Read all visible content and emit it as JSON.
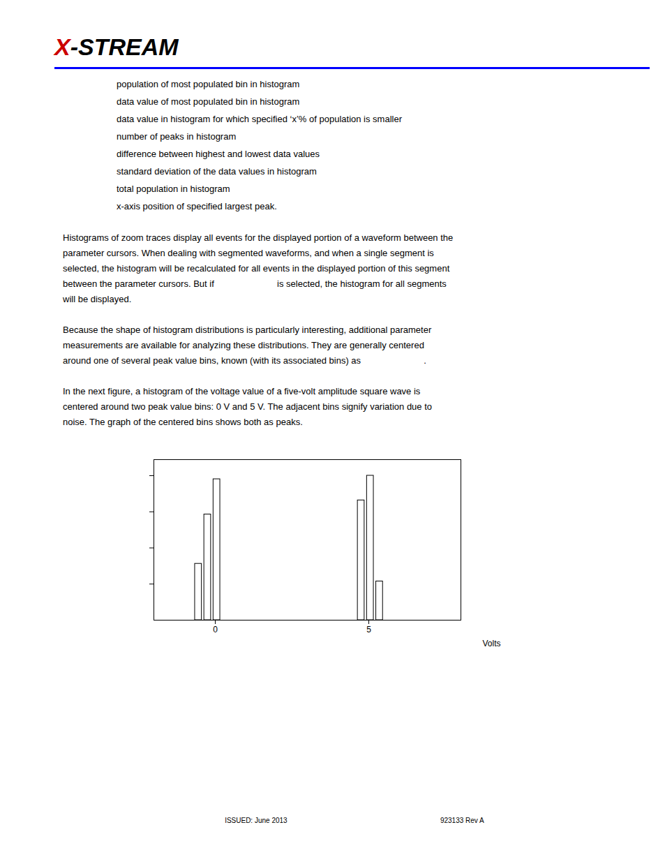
{
  "chart_data": {
    "type": "bar",
    "annotations": [
      [
        "X",
        "-STREAM"
      ],
      [
        "population of most populated bin in histogram",
        "data value of most populated bin in histogram",
        "data value in histogram for which specified ‘x’% of population is smaller",
        "number of peaks in histogram",
        "difference between highest and lowest data values",
        "standard deviation of the data values in histogram",
        "total population in histogram",
        "x-axis position of specified largest peak."
      ],
      [
        "Histograms of zoom traces display all events for the displayed portion of a waveform between the",
        "parameter cursors. When dealing with segmented waveforms, and when a single segment is",
        "selected, the histogram will be recalculated for all events in the displayed portion of this segment",
        "between the parameter cursors. But if                         is selected, the histogram for all segments",
        "will be displayed."
      ],
      [
        "Because the shape of histogram distributions is particularly interesting, additional parameter",
        "measurements are available for analyzing these distributions. They are generally centered",
        "around one of several peak value bins, known (with its associated bins) as                         ."
      ],
      [
        "In the next figure, a histogram of the voltage value of a five-volt amplitude square wave is",
        "centered around two peak value bins: 0 V and 5 V. The adjacent bins signify variation due to",
        "noise. The graph of the centered bins shows both as peaks."
      ],
      [
        "ISSUED: June 2013",
        "923133 Rev A"
      ]
    ],
    "x_label": "Volts",
    "x": [
      -0.55,
      -0.25,
      0.05,
      4.75,
      5.05,
      5.35
    ],
    "values": [
      35.1219512195122,
      65.85365853658537,
      87.8048780487805,
      74.63414634146342,
      90,
      24.146341463414632
    ],
    "color": "white",
    "xlim": [
      -2,
      8
    ],
    "xticks": [
      0,
      5
    ],
    "ylim": [
      0,
      100
    ],
    "yticks": [
      22.5,
      45,
      67.5,
      90
    ],
    "tick_labels": "x",
    "grid": false
  }
}
